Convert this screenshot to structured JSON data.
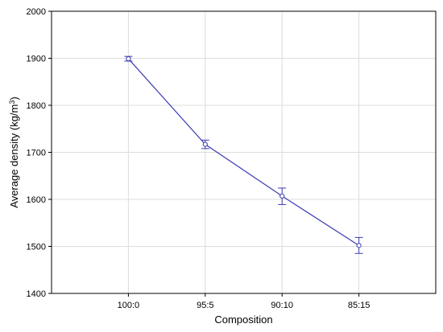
{
  "chart_data": {
    "type": "line",
    "xlabel": "Composition",
    "ylabel_base": "Average density (kg/m",
    "ylabel_sup": "3",
    "ylabel_end": ")",
    "categories": [
      "100:0",
      "95:5",
      "90:10",
      "85:15"
    ],
    "series": [
      {
        "values": [
          1899,
          1717,
          1607,
          1502
        ],
        "error_low": [
          1894,
          1708,
          1589,
          1485
        ],
        "error_high": [
          1904,
          1726,
          1624,
          1519
        ],
        "color": "#3b3bb3"
      }
    ],
    "ylim": [
      1400,
      2000
    ],
    "yticks": [
      1400,
      1500,
      1600,
      1700,
      1800,
      1900,
      2000
    ],
    "grid": true,
    "marker": "open-circle",
    "error_bars": true
  }
}
